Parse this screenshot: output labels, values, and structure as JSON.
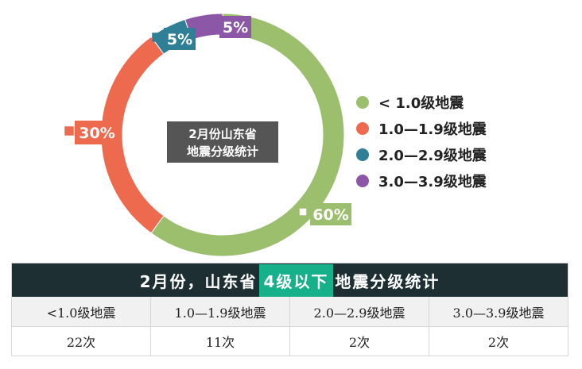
{
  "chart_data": {
    "type": "pie",
    "title": "2月份山东省地震分级统计",
    "categories": [
      "< 1.0级地震",
      "1.0—1.9级地震",
      "2.0—2.9级地震",
      "3.0—3.9级地震"
    ],
    "values": [
      60,
      30,
      5,
      5
    ],
    "labels": [
      "60%",
      "30%",
      "5%",
      "5%"
    ],
    "colors": [
      "#9bbf6d",
      "#ee6a4f",
      "#2f7f96",
      "#8b57a6"
    ]
  },
  "center_label": [
    "2月份山东省",
    "地震分级统计"
  ],
  "legend": [
    {
      "label": "< 1.0级地震",
      "color": "#9bbf6d"
    },
    {
      "label": "1.0—1.9级地震",
      "color": "#ee6a4f"
    },
    {
      "label": "2.0—2.9级地震",
      "color": "#2f7f96"
    },
    {
      "label": "3.0—3.9级地震",
      "color": "#8b57a6"
    }
  ],
  "table": {
    "title_pre": "2月份，山东省",
    "title_highlight": "4级以下",
    "title_post": "地震分级统计",
    "headers": [
      "<1.0级地震",
      "1.0—1.9级地震",
      "2.0—2.9级地震",
      "3.0—3.9级地震"
    ],
    "counts": [
      "22次",
      "11次",
      "2次",
      "2次"
    ]
  }
}
